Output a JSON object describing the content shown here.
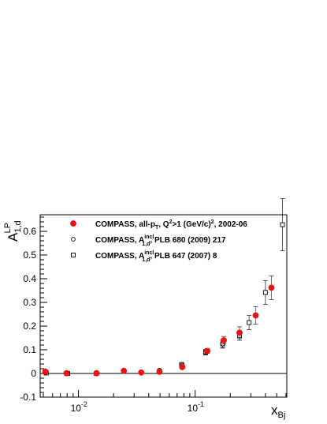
{
  "chart_data": {
    "type": "scatter",
    "title": "",
    "xlabel": {
      "main": "x",
      "sub": "Bj"
    },
    "ylabel": {
      "main": "A",
      "sup": "LP",
      "sub": "1,d"
    },
    "xscale": "log",
    "xlim": [
      0.0047,
      0.61
    ],
    "ylim": [
      -0.1,
      0.67
    ],
    "y_ticks": [
      "-0.1",
      "0",
      "0.1",
      "0.2",
      "0.3",
      "0.4",
      "0.5",
      "0.6"
    ],
    "x_tick_labels": [
      {
        "value": 0.01,
        "base": "10",
        "exp": "-2"
      },
      {
        "value": 0.1,
        "base": "10",
        "exp": "-1"
      }
    ],
    "zero_line": true,
    "grid": false,
    "legend_position": "top-left",
    "series": [
      {
        "key": "all-pt",
        "marker": "filled-circle",
        "color": "#ee1111",
        "legend": {
          "prefix": "COMPASS, all-p",
          "sub1": "T",
          "mid": ", Q",
          "sup1": "2",
          "mid2": ">1 (GeV/c)",
          "sup2": "2",
          "suffix": ", 2002-06"
        },
        "points": [
          {
            "x": 0.0052,
            "y": 0.008,
            "err": 0.003
          },
          {
            "x": 0.0079,
            "y": 0.001,
            "err": 0.003
          },
          {
            "x": 0.0143,
            "y": 0.001,
            "err": 0.003
          },
          {
            "x": 0.0245,
            "y": 0.011,
            "err": 0.003
          },
          {
            "x": 0.0345,
            "y": 0.004,
            "err": 0.003
          },
          {
            "x": 0.0495,
            "y": 0.007,
            "err": 0.004
          },
          {
            "x": 0.0775,
            "y": 0.027,
            "err": 0.005
          },
          {
            "x": 0.127,
            "y": 0.095,
            "err": 0.01
          },
          {
            "x": 0.176,
            "y": 0.14,
            "err": 0.016
          },
          {
            "x": 0.24,
            "y": 0.172,
            "err": 0.025
          },
          {
            "x": 0.33,
            "y": 0.245,
            "err": 0.037
          },
          {
            "x": 0.45,
            "y": 0.362,
            "err": 0.05
          }
        ]
      },
      {
        "key": "incl-2009",
        "marker": "open-circle",
        "color": "#000000",
        "legend": {
          "prefix": "COMPASS, A",
          "sup1": "incl",
          "sub1": "1,d",
          "suffix": ", PLB 680 (2009) 217"
        },
        "points": [
          {
            "x": 0.0052,
            "y": 0.002,
            "err": 0.003
          },
          {
            "x": 0.0079,
            "y": 0.001,
            "err": 0.003
          },
          {
            "x": 0.0143,
            "y": 0.003,
            "err": 0.003
          },
          {
            "x": 0.0245,
            "y": 0.01,
            "err": 0.003
          },
          {
            "x": 0.0345,
            "y": 0.004,
            "err": 0.003
          },
          {
            "x": 0.0495,
            "y": 0.014,
            "err": 0.004
          },
          {
            "x": 0.0775,
            "y": 0.035,
            "err": 0.006
          },
          {
            "x": 0.123,
            "y": 0.09,
            "err": 0.01
          },
          {
            "x": 0.172,
            "y": 0.125,
            "err": 0.015
          }
        ]
      },
      {
        "key": "incl-2007",
        "marker": "open-square",
        "color": "#000000",
        "legend": {
          "prefix": "COMPASS, A",
          "sup1": "incl",
          "sub1": "1,d",
          "suffix": ", PLB 647 (2007) 8"
        },
        "points": [
          {
            "x": 0.0053,
            "y": 0.002,
            "err": 0.003
          },
          {
            "x": 0.0081,
            "y": 0.0,
            "err": 0.003
          },
          {
            "x": 0.0142,
            "y": 0.0,
            "err": 0.003
          },
          {
            "x": 0.0495,
            "y": 0.01,
            "err": 0.005
          },
          {
            "x": 0.0765,
            "y": 0.038,
            "err": 0.008
          },
          {
            "x": 0.123,
            "y": 0.09,
            "err": 0.012
          },
          {
            "x": 0.172,
            "y": 0.125,
            "err": 0.018
          },
          {
            "x": 0.24,
            "y": 0.16,
            "err": 0.02
          },
          {
            "x": 0.29,
            "y": 0.215,
            "err": 0.03
          },
          {
            "x": 0.4,
            "y": 0.342,
            "err": 0.05
          },
          {
            "x": 0.56,
            "y": 0.628,
            "err": 0.11
          }
        ]
      }
    ]
  }
}
